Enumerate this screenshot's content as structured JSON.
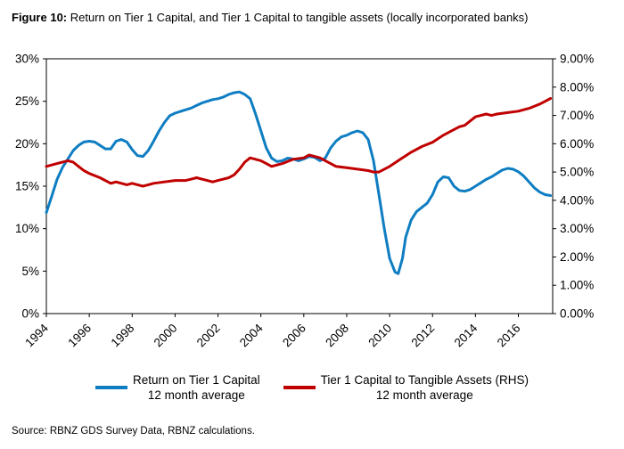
{
  "title": {
    "prefix": "Figure 10:",
    "rest": " Return on Tier 1 Capital, and Tier 1 Capital to tangible assets (locally incorporated banks)"
  },
  "source": "Source: RBNZ GDS Survey Data, RBNZ calculations.",
  "legend": [
    {
      "label_line1": "Return on Tier 1 Capital",
      "label_line2": "12 month average",
      "color": "#0E7DC2"
    },
    {
      "label_line1": "Tier 1 Capital to Tangible Assets (RHS)",
      "label_line2": "12 month average",
      "color": "#C00000"
    }
  ],
  "chart_data": {
    "type": "line",
    "title": "Return on Tier 1 Capital, and Tier 1 Capital to tangible assets (locally incorporated banks)",
    "grid": false,
    "legend_position": "bottom",
    "x_range": [
      1994,
      2017.6
    ],
    "x_tick_years": [
      1994,
      1996,
      1998,
      2000,
      2002,
      2004,
      2006,
      2008,
      2010,
      2012,
      2014,
      2016
    ],
    "left_axis": {
      "min": 0,
      "max": 30,
      "ticks": [
        {
          "v": 0,
          "label": "0%"
        },
        {
          "v": 5,
          "label": "5%"
        },
        {
          "v": 10,
          "label": "10%"
        },
        {
          "v": 15,
          "label": "15%"
        },
        {
          "v": 20,
          "label": "20%"
        },
        {
          "v": 25,
          "label": "25%"
        },
        {
          "v": 30,
          "label": "30%"
        }
      ]
    },
    "right_axis": {
      "min": 0,
      "max": 9,
      "ticks": [
        {
          "v": 0,
          "label": "0.00%"
        },
        {
          "v": 1,
          "label": "1.00%"
        },
        {
          "v": 2,
          "label": "2.00%"
        },
        {
          "v": 3,
          "label": "3.00%"
        },
        {
          "v": 4,
          "label": "4.00%"
        },
        {
          "v": 5,
          "label": "5.00%"
        },
        {
          "v": 6,
          "label": "6.00%"
        },
        {
          "v": 7,
          "label": "7.00%"
        },
        {
          "v": 8,
          "label": "8.00%"
        },
        {
          "v": 9,
          "label": "9.00%"
        }
      ]
    },
    "series": [
      {
        "name": "Return on Tier 1 Capital 12 month average",
        "axis": "left",
        "color": "#0E7DC2",
        "width": 3,
        "points": [
          [
            1994.0,
            11.9
          ],
          [
            1994.25,
            13.8
          ],
          [
            1994.5,
            15.8
          ],
          [
            1994.75,
            17.2
          ],
          [
            1995.0,
            18.2
          ],
          [
            1995.25,
            19.2
          ],
          [
            1995.5,
            19.8
          ],
          [
            1995.75,
            20.2
          ],
          [
            1996.0,
            20.3
          ],
          [
            1996.25,
            20.2
          ],
          [
            1996.5,
            19.8
          ],
          [
            1996.75,
            19.4
          ],
          [
            1997.0,
            19.4
          ],
          [
            1997.25,
            20.3
          ],
          [
            1997.5,
            20.5
          ],
          [
            1997.75,
            20.2
          ],
          [
            1998.0,
            19.3
          ],
          [
            1998.25,
            18.6
          ],
          [
            1998.5,
            18.5
          ],
          [
            1998.75,
            19.2
          ],
          [
            1999.0,
            20.3
          ],
          [
            1999.25,
            21.5
          ],
          [
            1999.5,
            22.5
          ],
          [
            1999.75,
            23.3
          ],
          [
            2000.0,
            23.6
          ],
          [
            2000.25,
            23.8
          ],
          [
            2000.5,
            24.0
          ],
          [
            2000.75,
            24.2
          ],
          [
            2001.0,
            24.5
          ],
          [
            2001.25,
            24.8
          ],
          [
            2001.5,
            25.0
          ],
          [
            2001.75,
            25.2
          ],
          [
            2002.0,
            25.3
          ],
          [
            2002.25,
            25.5
          ],
          [
            2002.5,
            25.8
          ],
          [
            2002.75,
            26.0
          ],
          [
            2003.0,
            26.1
          ],
          [
            2003.25,
            25.8
          ],
          [
            2003.5,
            25.3
          ],
          [
            2003.75,
            23.5
          ],
          [
            2004.0,
            21.5
          ],
          [
            2004.25,
            19.5
          ],
          [
            2004.5,
            18.3
          ],
          [
            2004.75,
            17.9
          ],
          [
            2005.0,
            18.0
          ],
          [
            2005.25,
            18.3
          ],
          [
            2005.5,
            18.2
          ],
          [
            2005.75,
            18.0
          ],
          [
            2006.0,
            18.2
          ],
          [
            2006.25,
            18.5
          ],
          [
            2006.5,
            18.4
          ],
          [
            2006.75,
            18.0
          ],
          [
            2007.0,
            18.3
          ],
          [
            2007.25,
            19.5
          ],
          [
            2007.5,
            20.3
          ],
          [
            2007.75,
            20.8
          ],
          [
            2008.0,
            21.0
          ],
          [
            2008.25,
            21.3
          ],
          [
            2008.5,
            21.5
          ],
          [
            2008.75,
            21.3
          ],
          [
            2009.0,
            20.5
          ],
          [
            2009.25,
            18.0
          ],
          [
            2009.5,
            14.0
          ],
          [
            2009.75,
            10.0
          ],
          [
            2010.0,
            6.5
          ],
          [
            2010.25,
            4.9
          ],
          [
            2010.4,
            4.7
          ],
          [
            2010.6,
            6.5
          ],
          [
            2010.75,
            9.0
          ],
          [
            2011.0,
            11.0
          ],
          [
            2011.25,
            12.0
          ],
          [
            2011.5,
            12.5
          ],
          [
            2011.75,
            13.0
          ],
          [
            2012.0,
            14.0
          ],
          [
            2012.25,
            15.5
          ],
          [
            2012.5,
            16.1
          ],
          [
            2012.75,
            16.0
          ],
          [
            2013.0,
            15.0
          ],
          [
            2013.25,
            14.5
          ],
          [
            2013.5,
            14.4
          ],
          [
            2013.75,
            14.6
          ],
          [
            2014.0,
            15.0
          ],
          [
            2014.25,
            15.4
          ],
          [
            2014.5,
            15.8
          ],
          [
            2014.75,
            16.1
          ],
          [
            2015.0,
            16.5
          ],
          [
            2015.25,
            16.9
          ],
          [
            2015.5,
            17.1
          ],
          [
            2015.75,
            17.0
          ],
          [
            2016.0,
            16.7
          ],
          [
            2016.25,
            16.2
          ],
          [
            2016.5,
            15.5
          ],
          [
            2016.75,
            14.8
          ],
          [
            2017.0,
            14.3
          ],
          [
            2017.25,
            14.0
          ],
          [
            2017.5,
            13.9
          ]
        ]
      },
      {
        "name": "Tier 1 Capital to Tangible Assets (RHS) 12 month average",
        "axis": "right",
        "color": "#C00000",
        "width": 3,
        "points": [
          [
            1994.0,
            5.2
          ],
          [
            1994.5,
            5.3
          ],
          [
            1995.0,
            5.4
          ],
          [
            1995.25,
            5.35
          ],
          [
            1995.5,
            5.2
          ],
          [
            1995.75,
            5.05
          ],
          [
            1996.0,
            4.95
          ],
          [
            1996.5,
            4.8
          ],
          [
            1997.0,
            4.6
          ],
          [
            1997.25,
            4.65
          ],
          [
            1997.5,
            4.6
          ],
          [
            1997.75,
            4.55
          ],
          [
            1998.0,
            4.6
          ],
          [
            1998.25,
            4.55
          ],
          [
            1998.5,
            4.5
          ],
          [
            1998.75,
            4.55
          ],
          [
            1999.0,
            4.6
          ],
          [
            1999.5,
            4.65
          ],
          [
            2000.0,
            4.7
          ],
          [
            2000.5,
            4.7
          ],
          [
            2000.75,
            4.75
          ],
          [
            2001.0,
            4.8
          ],
          [
            2001.25,
            4.75
          ],
          [
            2001.5,
            4.7
          ],
          [
            2001.75,
            4.65
          ],
          [
            2002.0,
            4.7
          ],
          [
            2002.5,
            4.8
          ],
          [
            2002.75,
            4.9
          ],
          [
            2003.0,
            5.1
          ],
          [
            2003.25,
            5.35
          ],
          [
            2003.5,
            5.5
          ],
          [
            2003.75,
            5.45
          ],
          [
            2004.0,
            5.4
          ],
          [
            2004.25,
            5.3
          ],
          [
            2004.5,
            5.2
          ],
          [
            2004.75,
            5.25
          ],
          [
            2005.0,
            5.3
          ],
          [
            2005.5,
            5.45
          ],
          [
            2006.0,
            5.5
          ],
          [
            2006.25,
            5.6
          ],
          [
            2006.5,
            5.55
          ],
          [
            2006.75,
            5.5
          ],
          [
            2007.0,
            5.4
          ],
          [
            2007.25,
            5.3
          ],
          [
            2007.5,
            5.2
          ],
          [
            2008.0,
            5.15
          ],
          [
            2008.5,
            5.1
          ],
          [
            2009.0,
            5.05
          ],
          [
            2009.25,
            5.0
          ],
          [
            2009.5,
            5.0
          ],
          [
            2009.75,
            5.1
          ],
          [
            2010.0,
            5.2
          ],
          [
            2010.5,
            5.45
          ],
          [
            2011.0,
            5.7
          ],
          [
            2011.5,
            5.9
          ],
          [
            2012.0,
            6.05
          ],
          [
            2012.5,
            6.3
          ],
          [
            2013.0,
            6.5
          ],
          [
            2013.25,
            6.6
          ],
          [
            2013.5,
            6.65
          ],
          [
            2013.75,
            6.8
          ],
          [
            2014.0,
            6.95
          ],
          [
            2014.25,
            7.0
          ],
          [
            2014.5,
            7.05
          ],
          [
            2014.75,
            7.0
          ],
          [
            2015.0,
            7.05
          ],
          [
            2015.5,
            7.1
          ],
          [
            2016.0,
            7.15
          ],
          [
            2016.25,
            7.2
          ],
          [
            2016.5,
            7.25
          ],
          [
            2017.0,
            7.4
          ],
          [
            2017.25,
            7.5
          ],
          [
            2017.5,
            7.6
          ]
        ]
      }
    ]
  }
}
